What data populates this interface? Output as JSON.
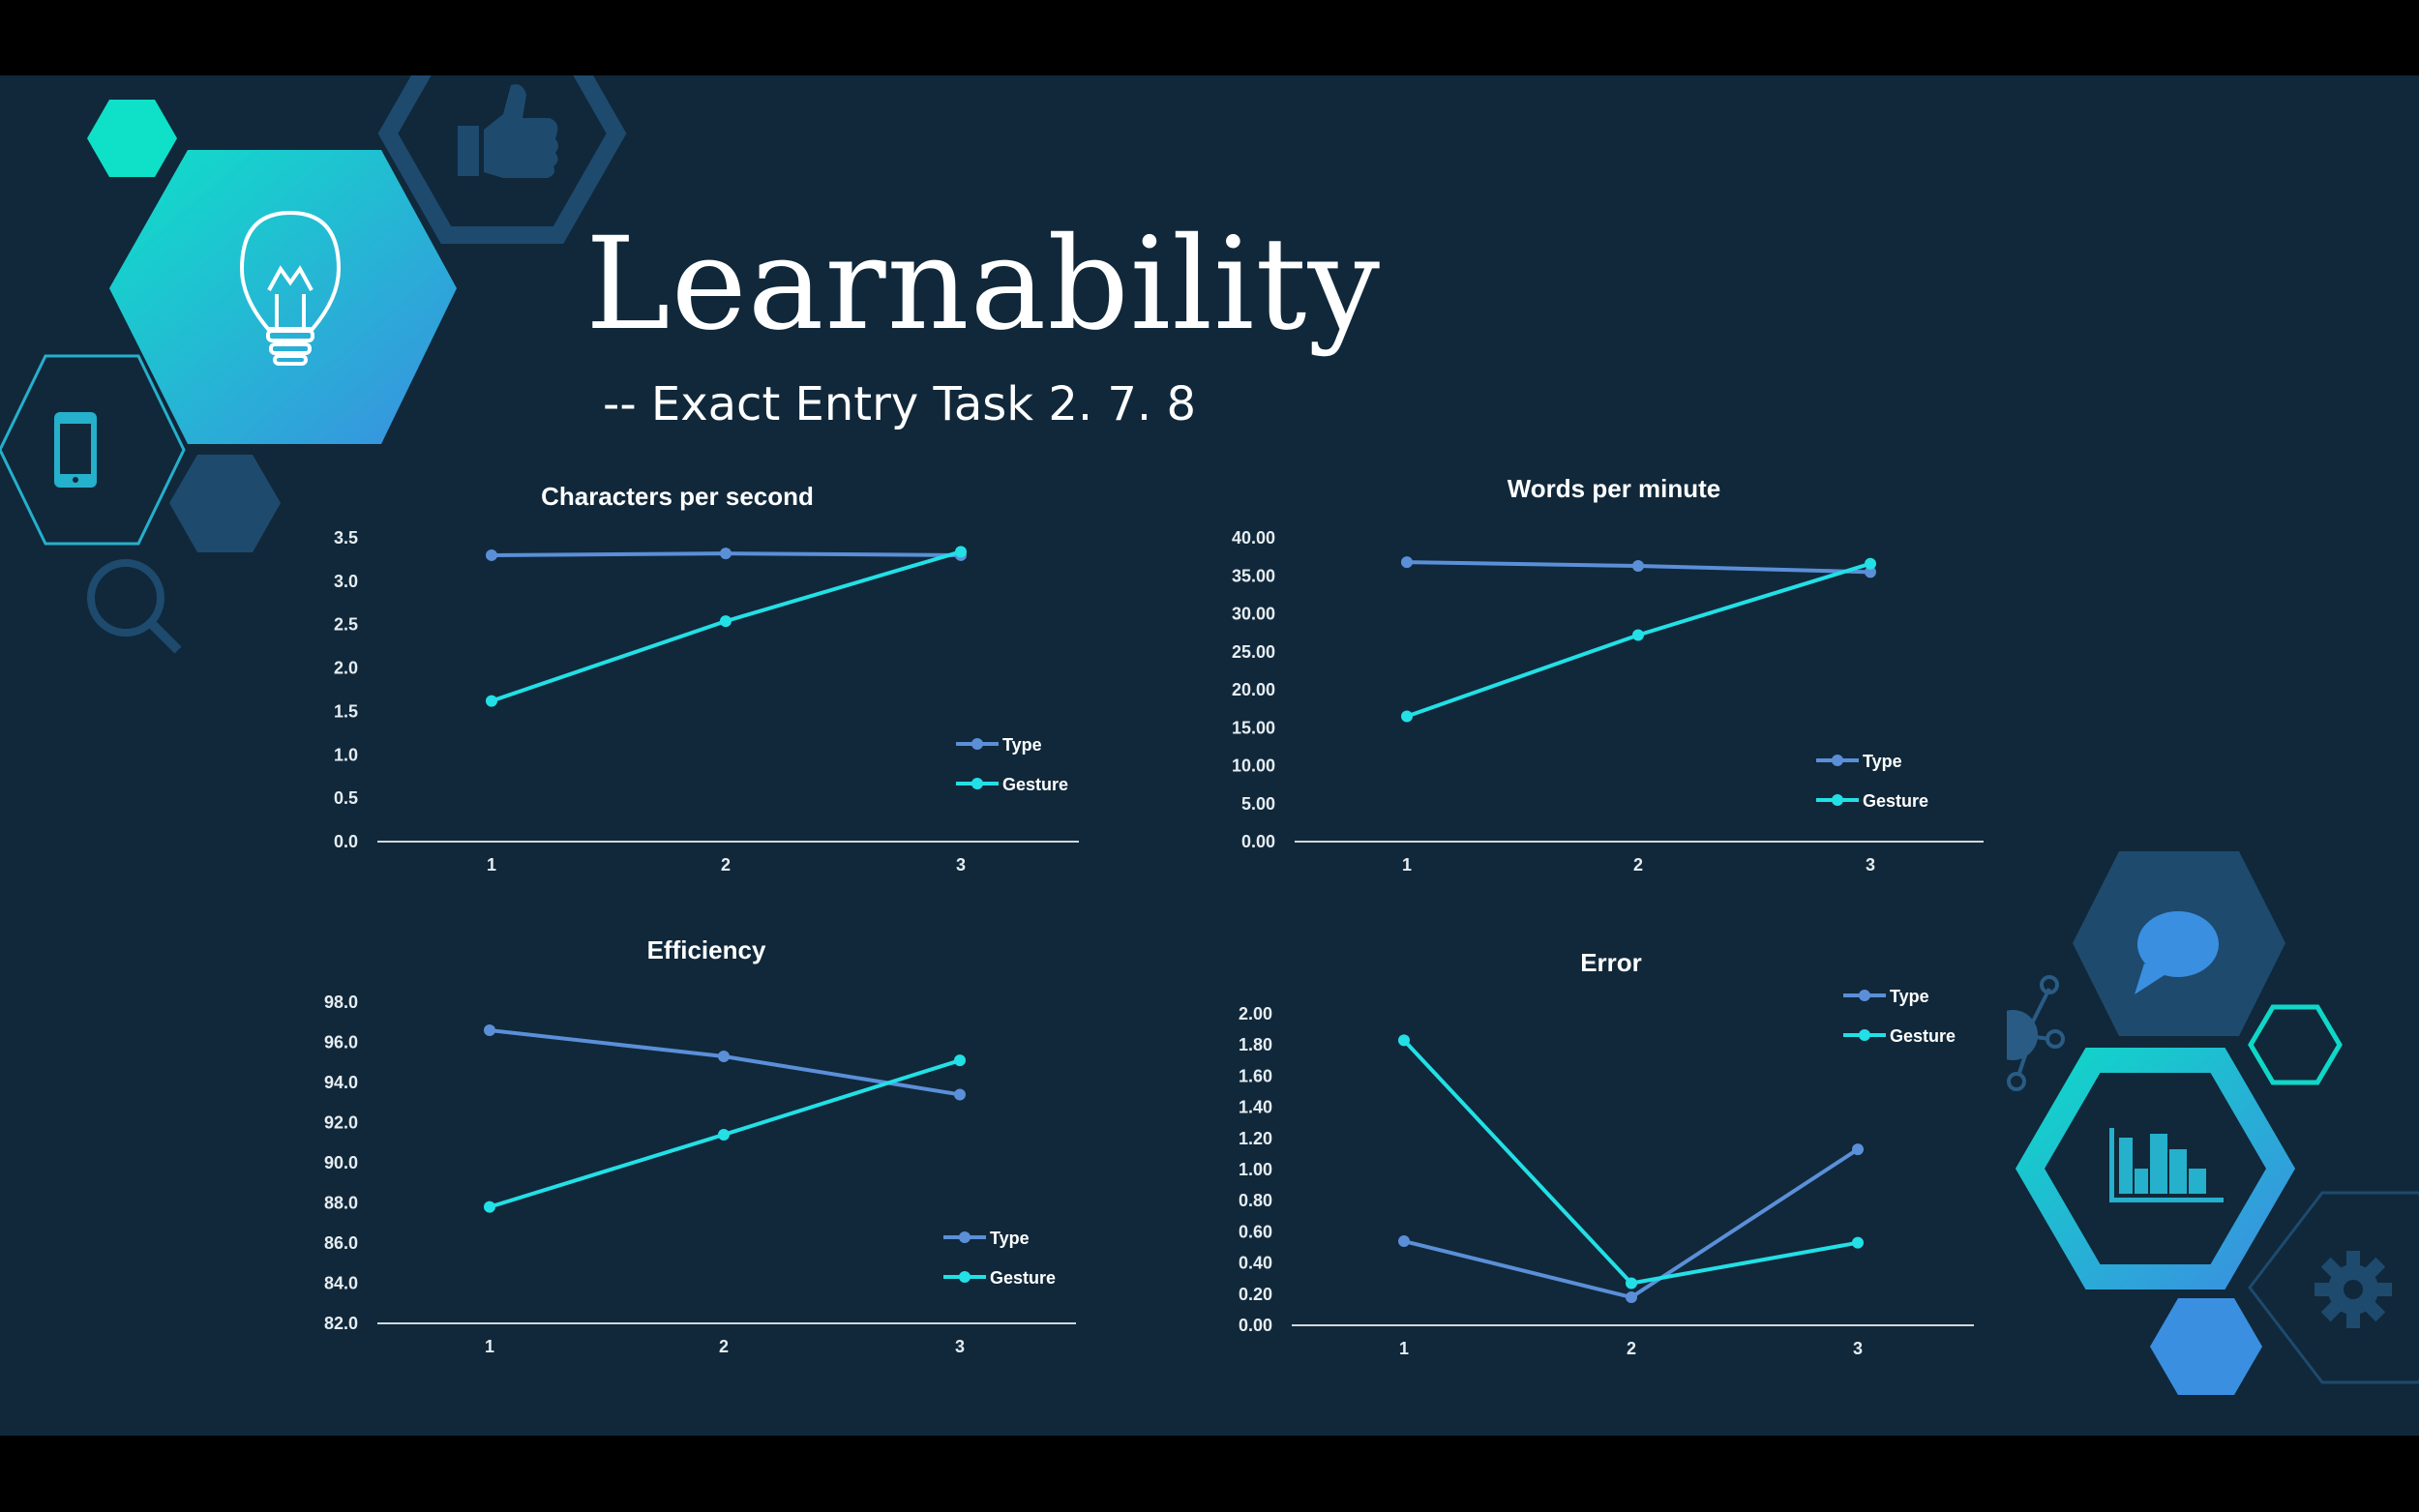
{
  "slide": {
    "title": "Learnability",
    "subtitle": "-- Exact Entry Task 2. 7. 8"
  },
  "icons": [
    "lightbulb-icon",
    "thumbs-up-icon",
    "smartphone-icon",
    "magnifier-icon",
    "speech-bubble-icon",
    "network-icon",
    "bar-chart-icon",
    "gear-icon"
  ],
  "colors": {
    "background": "#10283a",
    "type_series": "#5b8fd8",
    "gesture_series": "#22e0e6",
    "accent_teal": "#0fd8c8",
    "accent_blue": "#3a8fe0"
  },
  "chart_data": [
    {
      "type": "line",
      "title": "Characters per second",
      "categories": [
        "1",
        "2",
        "3"
      ],
      "ylim": [
        0,
        3.5
      ],
      "yticks": [
        "0.0",
        "0.5",
        "1.0",
        "1.5",
        "2.0",
        "2.5",
        "3.0",
        "3.5"
      ],
      "series": [
        {
          "name": "Type",
          "values": [
            3.3,
            3.32,
            3.3
          ]
        },
        {
          "name": "Gesture",
          "values": [
            1.62,
            2.54,
            3.34
          ]
        }
      ],
      "legend": "bottom-right",
      "grid": false
    },
    {
      "type": "line",
      "title": "Words per minute",
      "categories": [
        "1",
        "2",
        "3"
      ],
      "ylim": [
        0,
        40
      ],
      "yticks": [
        "0.00",
        "5.00",
        "10.00",
        "15.00",
        "20.00",
        "25.00",
        "30.00",
        "35.00",
        "40.00"
      ],
      "series": [
        {
          "name": "Type",
          "values": [
            36.8,
            36.3,
            35.5
          ]
        },
        {
          "name": "Gesture",
          "values": [
            16.5,
            27.2,
            36.6
          ]
        }
      ],
      "legend": "bottom-right",
      "grid": false
    },
    {
      "type": "line",
      "title": "Efficiency",
      "categories": [
        "1",
        "2",
        "3"
      ],
      "ylim": [
        82,
        98
      ],
      "yticks": [
        "82.0",
        "84.0",
        "86.0",
        "88.0",
        "90.0",
        "92.0",
        "94.0",
        "96.0",
        "98.0"
      ],
      "series": [
        {
          "name": "Type",
          "values": [
            96.6,
            95.3,
            93.4
          ]
        },
        {
          "name": "Gesture",
          "values": [
            87.8,
            91.4,
            95.1
          ]
        }
      ],
      "legend": "bottom-right",
      "grid": false
    },
    {
      "type": "line",
      "title": "Error",
      "categories": [
        "1",
        "2",
        "3"
      ],
      "ylim": [
        0,
        2
      ],
      "yticks": [
        "0.00",
        "0.20",
        "0.40",
        "0.60",
        "0.80",
        "1.00",
        "1.20",
        "1.40",
        "1.60",
        "1.80",
        "2.00"
      ],
      "series": [
        {
          "name": "Type",
          "values": [
            0.54,
            0.18,
            1.13
          ]
        },
        {
          "name": "Gesture",
          "values": [
            1.83,
            0.27,
            0.53
          ]
        }
      ],
      "legend": "top-right",
      "grid": false
    }
  ]
}
